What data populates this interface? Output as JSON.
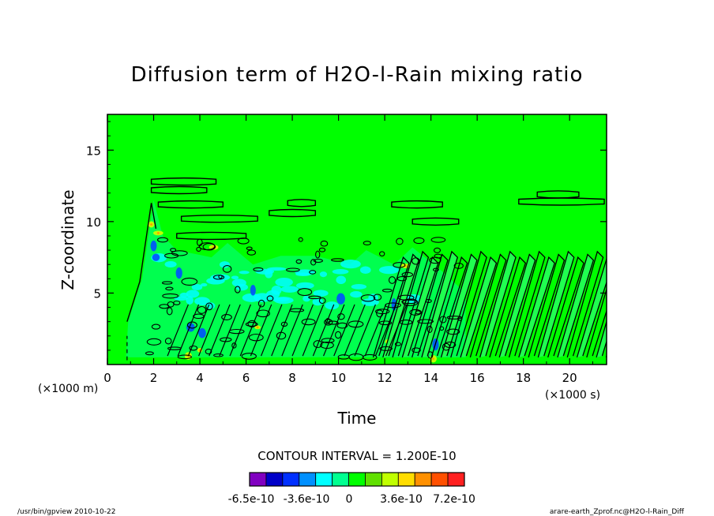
{
  "chart_data": {
    "type": "contour",
    "title": "Diffusion term of H2O-l-Rain mixing ratio",
    "xlabel": "Time",
    "ylabel": "Z-coordinate",
    "x_unit_label": "(×1000 s)",
    "y_unit_label": "(×1000 m)",
    "xlim": [
      0,
      21.6
    ],
    "ylim": [
      0,
      17.5
    ],
    "x_ticks": [
      0,
      2,
      4,
      6,
      8,
      10,
      12,
      14,
      16,
      18,
      20
    ],
    "x_tick_labels": [
      "0",
      "2",
      "4",
      "6",
      "8",
      "10",
      "12",
      "14",
      "16",
      "18",
      "20"
    ],
    "y_ticks": [
      5,
      10,
      15
    ],
    "y_tick_labels": [
      "5",
      "10",
      "15"
    ],
    "background_color": "#00ff00",
    "contour_interval_text": "CONTOUR INTERVAL = 1.200E-10",
    "colorbar": {
      "colors": [
        "#8000c0",
        "#0000c8",
        "#0030ff",
        "#0090ff",
        "#00ffff",
        "#00ff90",
        "#00ff00",
        "#60e000",
        "#c0ff00",
        "#ffdd00",
        "#ff9000",
        "#ff5000",
        "#ff2020"
      ],
      "tick_labels": [
        "-6.5e-10",
        "-3.6e-10",
        "0",
        "3.6e-10",
        "7.2e-10"
      ]
    }
  },
  "footer": {
    "left": "/usr/bin/gpview  2010-10-22",
    "right": "arare-earth_Zprof.nc@H2O-l-Rain_Diff"
  }
}
